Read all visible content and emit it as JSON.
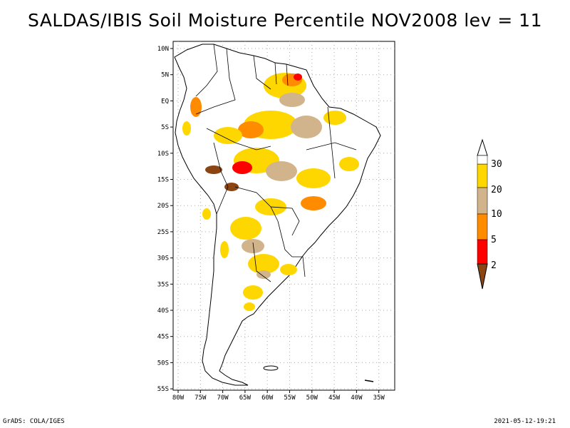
{
  "title": "SALDAS/IBIS Soil Moisture Percentile NOV2008 lev = 11",
  "credit": "GrADS: COLA/IGES",
  "timestamp": "2021-05-12-19:21",
  "colors": {
    "brown": "#8b4513",
    "red": "#ff0000",
    "orange": "#ff8c00",
    "tan": "#d2b48c",
    "yellow": "#ffd700",
    "white": "#ffffff"
  },
  "axes": {
    "lat_labels": [
      "10N",
      "5N",
      "EQ",
      "5S",
      "10S",
      "15S",
      "20S",
      "25S",
      "30S",
      "35S",
      "40S",
      "45S",
      "50S",
      "55S"
    ],
    "lon_labels": [
      "80W",
      "75W",
      "70W",
      "65W",
      "60W",
      "55W",
      "50W",
      "45W",
      "40W",
      "35W"
    ]
  },
  "legend": {
    "levels": [
      "30",
      "20",
      "10",
      "5",
      "2"
    ]
  }
}
